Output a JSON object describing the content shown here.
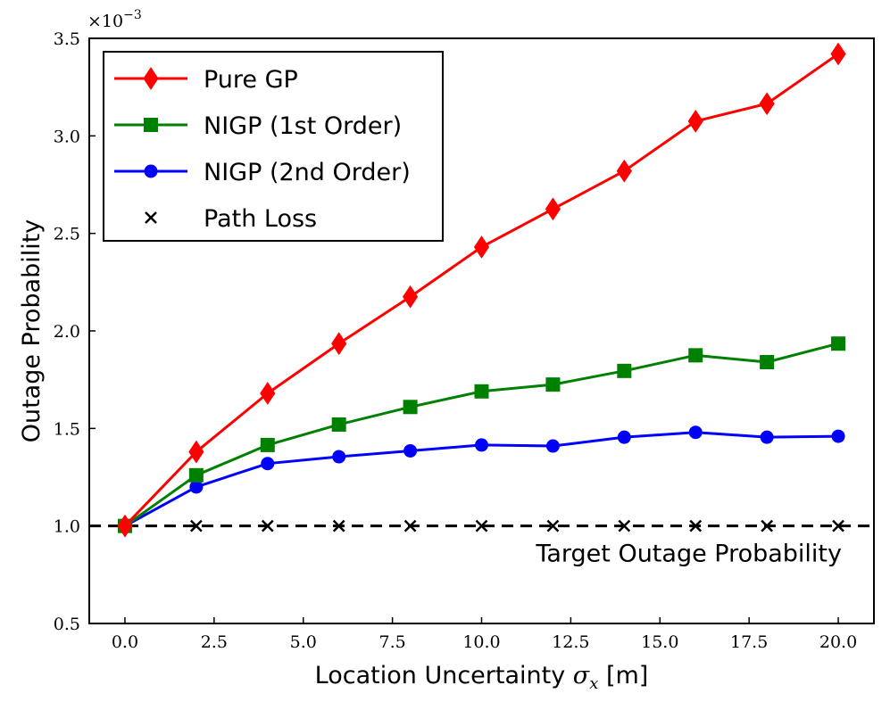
{
  "chart_data": {
    "type": "line",
    "xlabel": "Location Uncertainty",
    "xlabel_symbol": "σ",
    "xlabel_subscript": "x",
    "xlabel_unit": "[m]",
    "ylabel": "Outage Probability",
    "y_multiplier": "×10",
    "y_multiplier_exp": "−3",
    "xlim": [
      -1.0,
      21.0
    ],
    "ylim": [
      0.5,
      3.5
    ],
    "x_ticks": [
      0.0,
      2.5,
      5.0,
      7.5,
      10.0,
      12.5,
      15.0,
      17.5,
      20.0
    ],
    "x_tick_labels": [
      "0.0",
      "2.5",
      "5.0",
      "7.5",
      "10.0",
      "12.5",
      "15.0",
      "17.5",
      "20.0"
    ],
    "y_ticks": [
      0.5,
      1.0,
      1.5,
      2.0,
      2.5,
      3.0,
      3.5
    ],
    "y_tick_labels": [
      "0.5",
      "1.0",
      "1.5",
      "2.0",
      "2.5",
      "3.0",
      "3.5"
    ],
    "x": [
      0,
      2,
      4,
      6,
      8,
      10,
      12,
      14,
      16,
      18,
      20
    ],
    "series": [
      {
        "name": "Pure GP",
        "color": "#ff0000",
        "marker": "diamond",
        "line": true,
        "values": [
          1.0,
          1.38,
          1.68,
          1.935,
          2.175,
          2.43,
          2.625,
          2.82,
          3.075,
          3.165,
          3.42
        ]
      },
      {
        "name": "NIGP (1st Order)",
        "color": "#008000",
        "marker": "square",
        "line": true,
        "values": [
          1.0,
          1.26,
          1.415,
          1.52,
          1.61,
          1.69,
          1.725,
          1.795,
          1.875,
          1.84,
          1.935
        ]
      },
      {
        "name": "NIGP (2nd Order)",
        "color": "#0000ff",
        "marker": "circle",
        "line": true,
        "values": [
          1.0,
          1.2,
          1.32,
          1.355,
          1.385,
          1.415,
          1.41,
          1.455,
          1.48,
          1.455,
          1.46
        ]
      },
      {
        "name": "Path Loss",
        "color": "#000000",
        "marker": "x",
        "line": false,
        "values": [
          1.0,
          1.0,
          1.0,
          1.0,
          1.0,
          1.0,
          1.0,
          1.0,
          1.0,
          1.0,
          1.0
        ]
      }
    ],
    "reference_line": {
      "y": 1.0,
      "style": "dashed",
      "color": "#000000",
      "label": "Target Outage Probability"
    },
    "legend_position": "upper-left",
    "grid": false
  }
}
